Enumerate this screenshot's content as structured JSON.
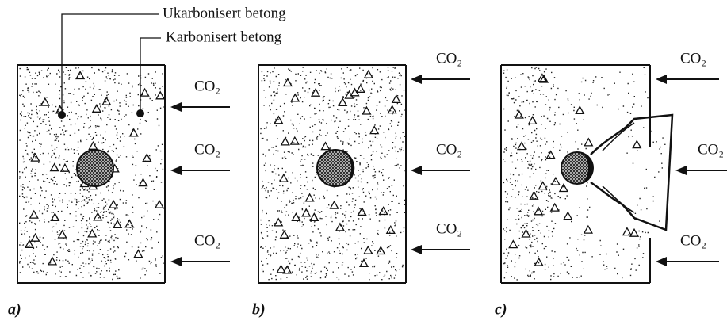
{
  "labels": {
    "uncarbonated": "Ukarbonisert betong",
    "carbonated": "Karbonisert betong"
  },
  "panels": [
    {
      "label": "a)",
      "co2": [
        "CO₂",
        "CO₂",
        "CO₂"
      ]
    },
    {
      "label": "b)",
      "co2": [
        "CO₂",
        "CO₂",
        "CO₂"
      ]
    },
    {
      "label": "c)",
      "co2": [
        "CO₂",
        "CO₂",
        "CO₂"
      ]
    }
  ]
}
